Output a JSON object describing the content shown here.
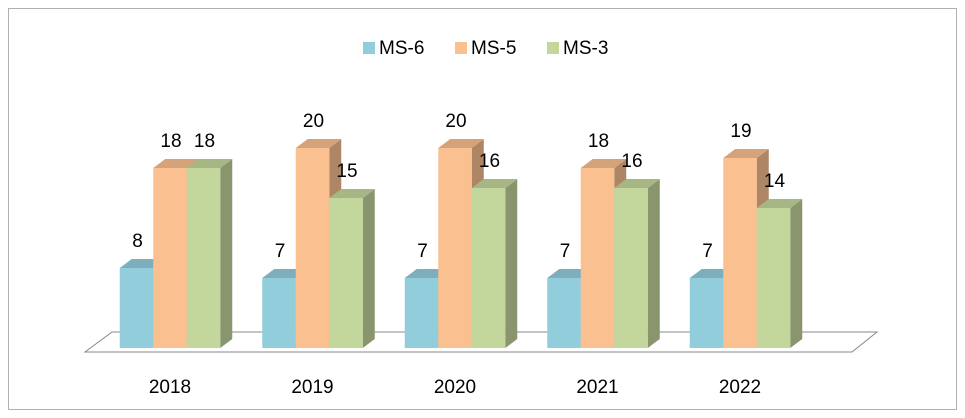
{
  "chart_data": {
    "type": "bar3d",
    "categories": [
      "2018",
      "2019",
      "2020",
      "2021",
      "2022"
    ],
    "series": [
      {
        "name": "MS-6",
        "color": "#92cddc",
        "values": [
          8,
          7,
          7,
          7,
          7
        ]
      },
      {
        "name": "MS-5",
        "color": "#fac090",
        "values": [
          18,
          20,
          20,
          18,
          19
        ]
      },
      {
        "name": "MS-3",
        "color": "#c3d69b",
        "values": [
          18,
          15,
          16,
          16,
          14
        ]
      }
    ],
    "legend": "top"
  }
}
